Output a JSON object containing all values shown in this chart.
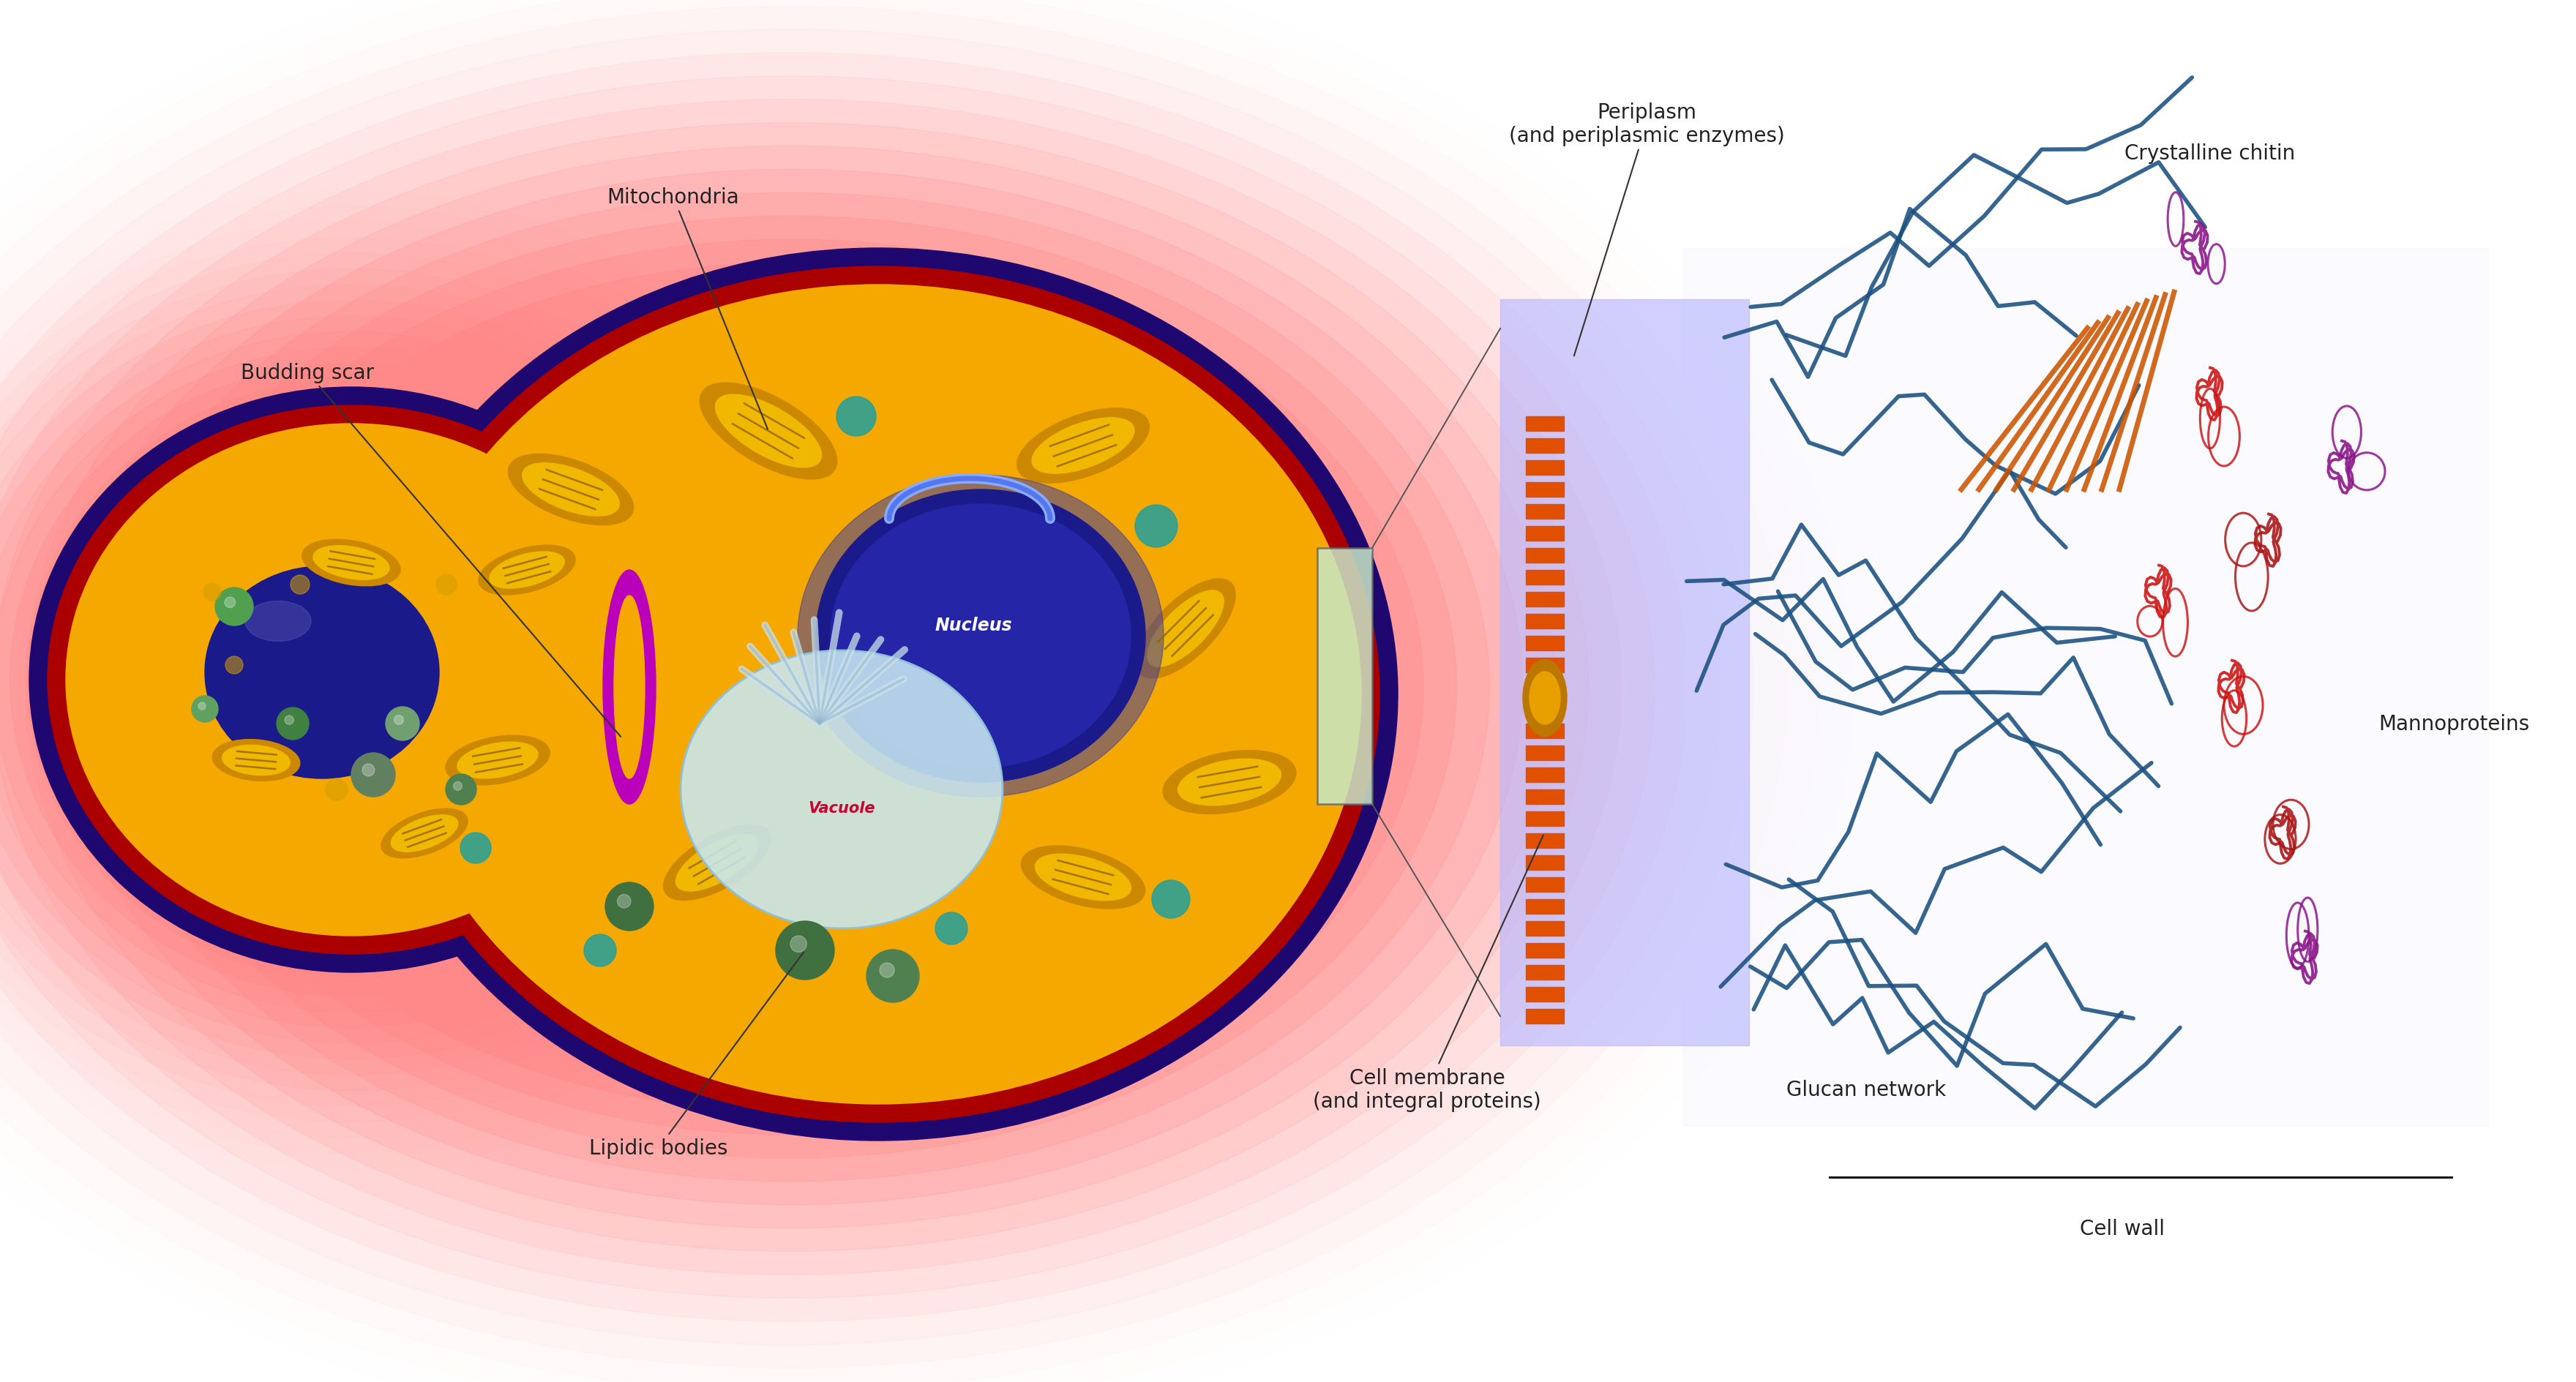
{
  "bg_color": "#ffffff",
  "labels": {
    "mitochondria": "Mitochondria",
    "budding_scar": "Budding scar",
    "lipidic_bodies": "Lipidic bodies",
    "nucleus": "Nucleus",
    "vacuole": "Vacuole",
    "periplasm": "Periplasm\n(and periplasmic enzymes)",
    "cell_membrane": "Cell membrane\n(and integral proteins)",
    "crystalline_chitin": "Crystalline chitin",
    "glucan_network": "Glucan network",
    "mannoproteins": "Mannoproteins",
    "cell_wall": "Cell wall"
  },
  "colors": {
    "cell_glow": "#ffaaaa",
    "cell_membrane_dark": "#1e0870",
    "cell_membrane_red": "#cc0000",
    "cytoplasm": "#f5a800",
    "nucleus_dark": "#1a1a8a",
    "nucleus_mid": "#2525a8",
    "vacuole_fill": "#c8e8f2",
    "vacuole_edge": "#90c0d8",
    "mito_outer": "#cc8800",
    "mito_inner": "#f0b800",
    "mito_cristae": "#996600",
    "lipid_green": "#3d7a3d",
    "lipid_teal": "#1a9090",
    "bud_scar": "#bb00bb",
    "membrane_stripe": "#e05000",
    "membrane_prot": "#cc7700",
    "glucan_blue": "#1a5080",
    "chitin_orange": "#cc5500",
    "manno_red": "#cc1111",
    "manno_purple": "#881188",
    "periplasm_bg": "#b8b8ff",
    "zoom_rect_fill": "#c8e8c8",
    "zoom_rect_edge": "#666666"
  },
  "label_fontsize": 20,
  "label_color": "#222222"
}
